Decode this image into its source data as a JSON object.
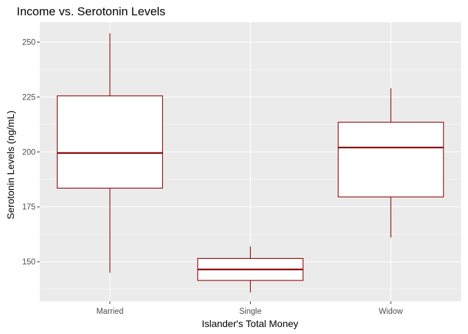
{
  "chart_data": {
    "type": "boxplot",
    "title": "Income vs. Serotonin Levels",
    "xlabel": "Islander's Total Money",
    "ylabel": "Serotonin Levels (ng/mL)",
    "categories": [
      "Married",
      "Single",
      "Widow"
    ],
    "boxes": [
      {
        "category": "Married",
        "whisker_low": 145,
        "q1": 183.5,
        "median": 199.5,
        "q3": 225.5,
        "whisker_high": 254
      },
      {
        "category": "Single",
        "whisker_low": 136,
        "q1": 141.5,
        "median": 146.5,
        "q3": 151.5,
        "whisker_high": 157
      },
      {
        "category": "Widow",
        "whisker_low": 161,
        "q1": 179.5,
        "median": 202,
        "q3": 213.5,
        "whisker_high": 229
      }
    ],
    "yticks": [
      150,
      175,
      200,
      225,
      250
    ],
    "ylim": [
      132,
      259
    ],
    "grid": true,
    "colors": {
      "panel_background": "#ebebeb",
      "grid_major": "#ffffff",
      "box_line": "#8b0000",
      "box_fill": "#ffffff",
      "tick_text": "#4d4d4d"
    }
  }
}
